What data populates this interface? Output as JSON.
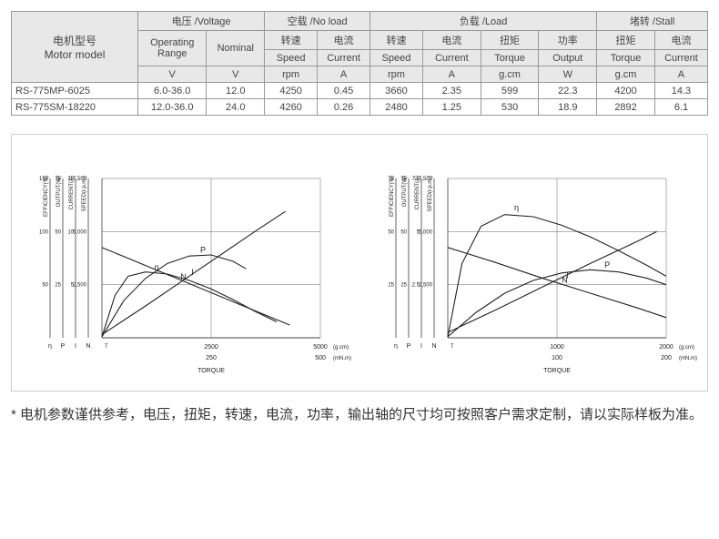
{
  "table": {
    "header": {
      "model_cn": "电机型号",
      "model_en": "Motor model",
      "voltage": "电压 /Voltage",
      "noload": "空载 /No load",
      "load": "负载 /Load",
      "stall": "堵转 /Stall",
      "operating_range": "Operating Range",
      "nominal": "Nominal",
      "speed_cn": "转速",
      "speed_en": "Speed",
      "current_cn": "电流",
      "current_en": "Current",
      "torque_cn": "扭矩",
      "torque_en": "Torque",
      "power_cn": "功率",
      "output_en": "Output",
      "unit_V": "V",
      "unit_rpm": "rpm",
      "unit_A": "A",
      "unit_gcm": "g.cm",
      "unit_W": "W"
    },
    "rows": [
      {
        "model": "RS-775MP-6025",
        "range": "6.0-36.0",
        "nominal": "12.0",
        "nl_speed": "4250",
        "nl_cur": "0.45",
        "l_speed": "3660",
        "l_cur": "2.35",
        "l_torque": "599",
        "l_out": "22.3",
        "s_torque": "4200",
        "s_cur": "14.3"
      },
      {
        "model": "RS-775SM-18220",
        "range": "12.0-36.0",
        "nominal": "24.0",
        "nl_speed": "4260",
        "nl_cur": "0.26",
        "l_speed": "2480",
        "l_cur": "1.25",
        "l_torque": "530",
        "l_out": "18.9",
        "s_torque": "2892",
        "s_cur": "6.1"
      }
    ]
  },
  "charts": {
    "left": {
      "title": "TORQUE",
      "x_unit_top": "(g.cm)",
      "x_unit_bot": "(mN.m)",
      "x_ticks_top": [
        "2500",
        "5000"
      ],
      "x_ticks_bot": [
        "250",
        "500"
      ],
      "y_axes": [
        {
          "label": "EFFICIENCY(%)",
          "ticks": [
            "50",
            "100",
            "150"
          ],
          "sym": "η"
        },
        {
          "label": "OUTPUT(W)",
          "ticks": [
            "25",
            "50",
            "75"
          ],
          "sym": "P"
        },
        {
          "label": "CURRENT(A)",
          "ticks": [
            "5",
            "10",
            "15"
          ],
          "sym": "I"
        },
        {
          "label": "SPEED(r.p.m.)",
          "ticks": [
            "2,500",
            "5,000",
            "7,500"
          ],
          "sym": "N"
        }
      ],
      "xlim": [
        0,
        5000
      ],
      "ylim_norm": [
        0,
        1.5
      ],
      "curves": {
        "N": {
          "pts": [
            [
              0,
              0.85
            ],
            [
              1000,
              0.68
            ],
            [
              2000,
              0.51
            ],
            [
              3000,
              0.34
            ],
            [
              4000,
              0.17
            ],
            [
              4300,
              0.12
            ]
          ]
        },
        "I": {
          "pts": [
            [
              0,
              0.03
            ],
            [
              1000,
              0.3
            ],
            [
              2000,
              0.58
            ],
            [
              3000,
              0.86
            ],
            [
              3500,
              1.0
            ],
            [
              4200,
              1.19
            ]
          ]
        },
        "eta": {
          "label": "η",
          "pts": [
            [
              0,
              0.01
            ],
            [
              300,
              0.4
            ],
            [
              600,
              0.58
            ],
            [
              1000,
              0.62
            ],
            [
              1500,
              0.6
            ],
            [
              2000,
              0.54
            ],
            [
              2500,
              0.46
            ],
            [
              3000,
              0.36
            ],
            [
              3500,
              0.25
            ],
            [
              4000,
              0.15
            ]
          ]
        },
        "P": {
          "label": "P",
          "pts": [
            [
              0,
              0.01
            ],
            [
              500,
              0.35
            ],
            [
              1000,
              0.56
            ],
            [
              1500,
              0.7
            ],
            [
              2000,
              0.77
            ],
            [
              2500,
              0.78
            ],
            [
              3000,
              0.72
            ],
            [
              3300,
              0.65
            ]
          ]
        }
      },
      "label_pos": {
        "eta": [
          1200,
          0.64
        ],
        "P": [
          2250,
          0.8
        ],
        "N": [
          1800,
          0.55
        ],
        "I": [
          2050,
          0.59
        ]
      },
      "line_color": "#222222",
      "grid_color": "#666666",
      "bg_color": "#ffffff",
      "fontsize": 7
    },
    "right": {
      "title": "TORQUE",
      "x_unit_top": "(g.cm)",
      "x_unit_bot": "(mN.m)",
      "x_ticks_top": [
        "1000",
        "2000"
      ],
      "x_ticks_bot": [
        "100",
        "200"
      ],
      "y_axes": [
        {
          "label": "EFFICIENCY(%)",
          "ticks": [
            "25",
            "50",
            "75"
          ],
          "sym": "η"
        },
        {
          "label": "OUTPUT(W)",
          "ticks": [
            "25",
            "50",
            "75"
          ],
          "sym": "P"
        },
        {
          "label": "CURRENT(A)",
          "ticks": [
            "2.5",
            "5",
            "7.5"
          ],
          "sym": "I"
        },
        {
          "label": "SPEED(r.p.m.)",
          "ticks": [
            "2,500",
            "5,000",
            "7,500"
          ],
          "sym": "N"
        }
      ],
      "xlim": [
        0,
        2300
      ],
      "ylim_norm": [
        0,
        1.5
      ],
      "curves": {
        "N": {
          "pts": [
            [
              0,
              0.85
            ],
            [
              500,
              0.71
            ],
            [
              1000,
              0.56
            ],
            [
              1500,
              0.42
            ],
            [
              2000,
              0.28
            ],
            [
              2300,
              0.19
            ]
          ]
        },
        "I": {
          "pts": [
            [
              0,
              0.05
            ],
            [
              500,
              0.26
            ],
            [
              1000,
              0.48
            ],
            [
              1500,
              0.7
            ],
            [
              2000,
              0.91
            ],
            [
              2200,
              1.0
            ]
          ]
        },
        "eta": {
          "label": "η",
          "pts": [
            [
              0,
              0.01
            ],
            [
              150,
              0.7
            ],
            [
              350,
              1.05
            ],
            [
              600,
              1.16
            ],
            [
              900,
              1.14
            ],
            [
              1200,
              1.06
            ],
            [
              1500,
              0.95
            ],
            [
              1800,
              0.82
            ],
            [
              2100,
              0.68
            ],
            [
              2300,
              0.58
            ]
          ]
        },
        "P": {
          "label": "P",
          "pts": [
            [
              0,
              0.01
            ],
            [
              300,
              0.24
            ],
            [
              600,
              0.42
            ],
            [
              900,
              0.54
            ],
            [
              1200,
              0.61
            ],
            [
              1500,
              0.64
            ],
            [
              1800,
              0.62
            ],
            [
              2100,
              0.56
            ],
            [
              2300,
              0.5
            ]
          ]
        }
      },
      "label_pos": {
        "eta": [
          700,
          1.2
        ],
        "P": [
          1650,
          0.66
        ],
        "N": [
          1200,
          0.52
        ],
        "I": [
          1250,
          0.56
        ]
      },
      "line_color": "#222222",
      "grid_color": "#666666",
      "bg_color": "#ffffff",
      "fontsize": 7
    }
  },
  "footnote": "* 电机参数谨供参考，电压，扭矩，转速，电流，功率，输出轴的尺寸均可按照客户需求定制，请以实际样板为准。"
}
